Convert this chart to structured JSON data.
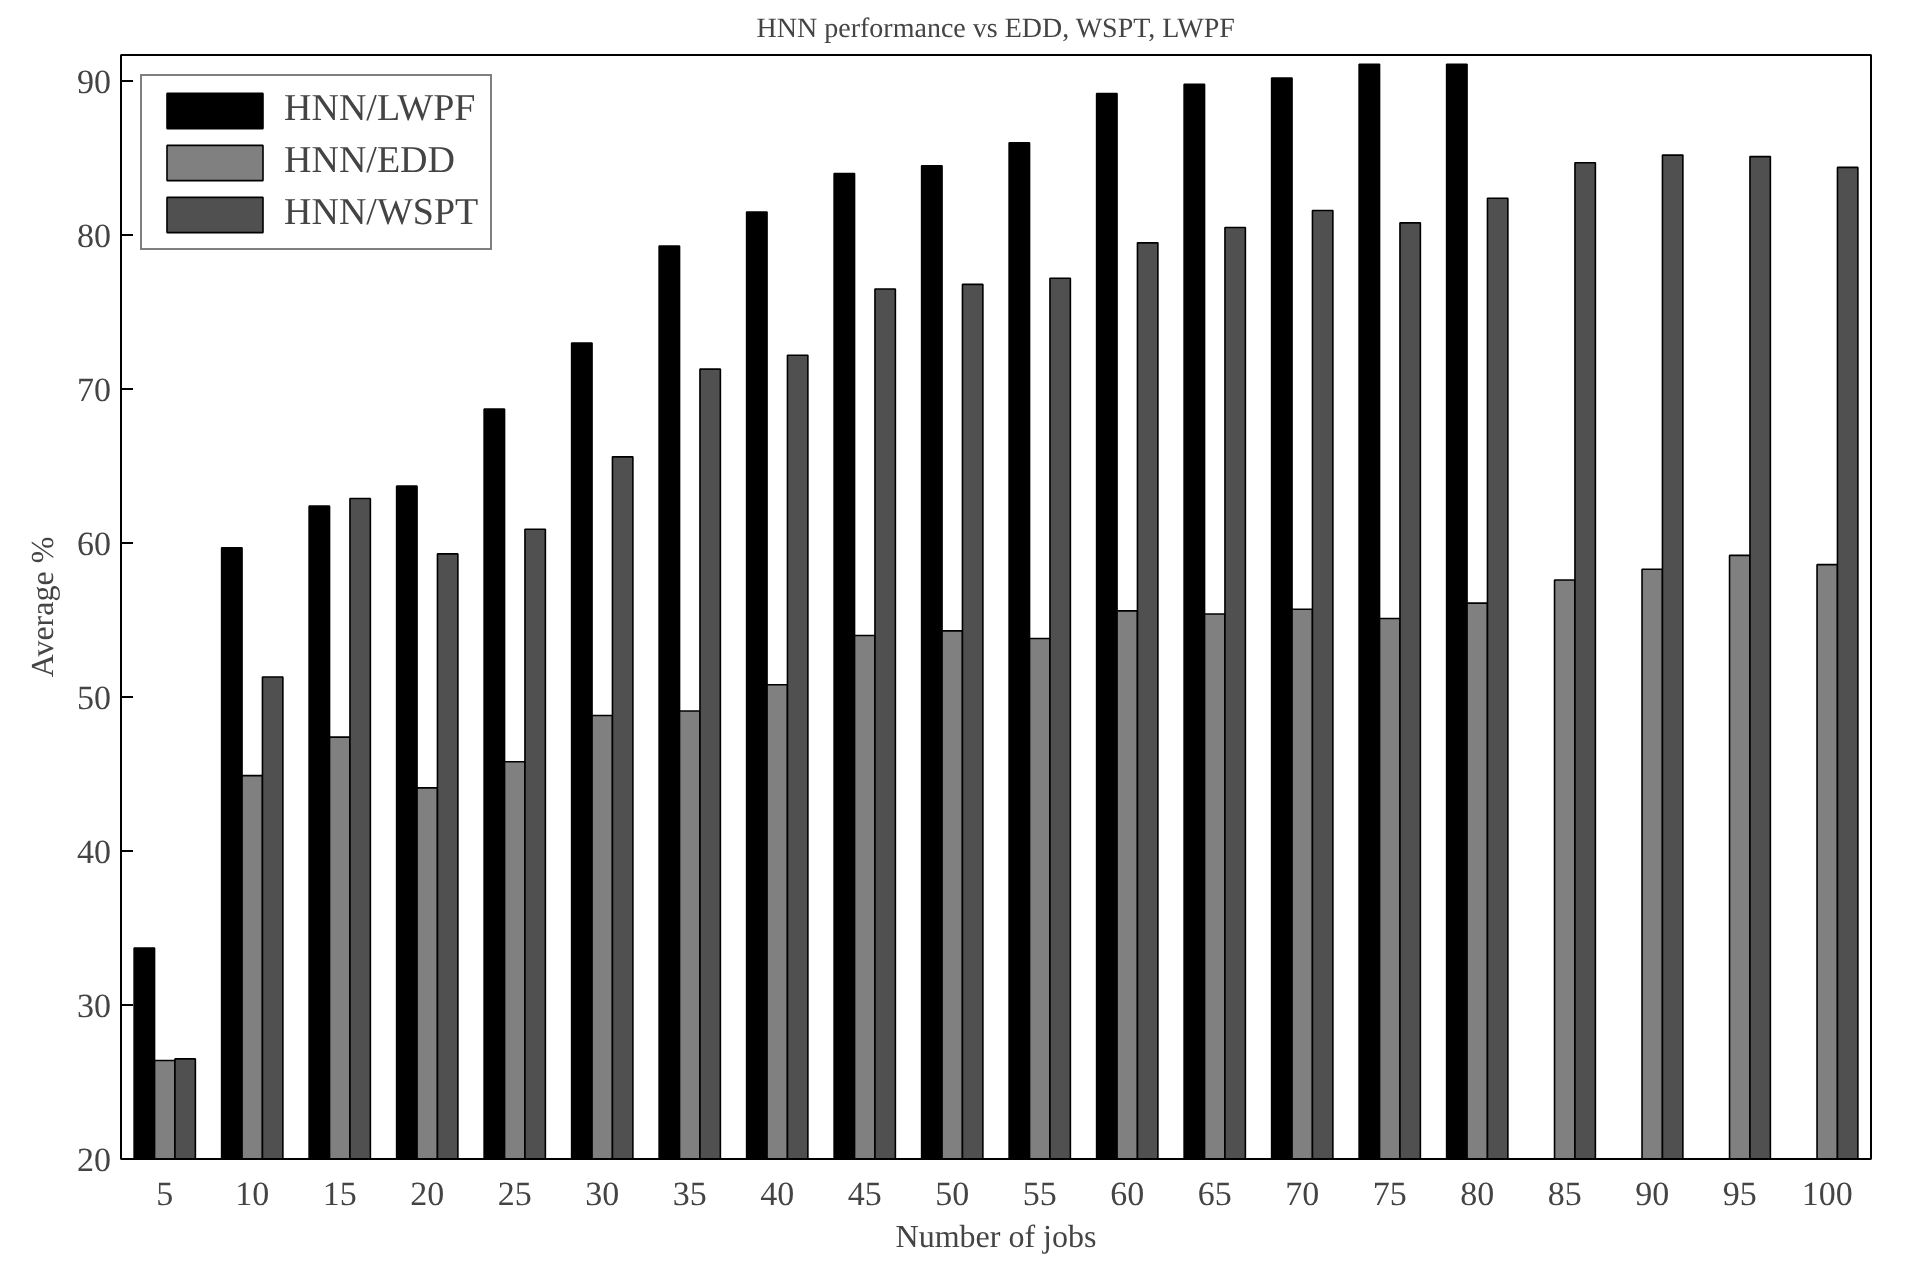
{
  "chart_data": {
    "type": "bar",
    "title": "HNN performance vs EDD, WSPT, LWPF",
    "xlabel": "Number of jobs",
    "ylabel": "Average %",
    "categories": [
      "5",
      "10",
      "15",
      "20",
      "25",
      "30",
      "35",
      "40",
      "45",
      "50",
      "55",
      "60",
      "65",
      "70",
      "75",
      "80",
      "85",
      "90",
      "95",
      "100"
    ],
    "series": [
      {
        "name": "HNN/LWPF",
        "color": "#000000",
        "values": [
          33.7,
          59.7,
          62.4,
          63.7,
          68.7,
          73.0,
          79.3,
          81.5,
          84.0,
          84.5,
          86.0,
          89.2,
          89.8,
          90.2,
          91.1,
          91.1,
          null,
          null,
          null,
          null
        ]
      },
      {
        "name": "HNN/EDD",
        "color": "#808080",
        "values": [
          26.4,
          44.9,
          47.4,
          44.1,
          45.8,
          48.8,
          49.1,
          50.8,
          54.0,
          54.3,
          53.8,
          55.6,
          55.4,
          55.7,
          55.1,
          56.1,
          57.6,
          58.3,
          59.2,
          58.6
        ]
      },
      {
        "name": "HNN/WSPT",
        "color": "#505050",
        "values": [
          26.5,
          51.3,
          62.9,
          59.3,
          60.9,
          65.6,
          71.3,
          72.2,
          76.5,
          76.8,
          77.2,
          79.5,
          80.5,
          81.6,
          80.8,
          82.4,
          84.7,
          85.2,
          85.1,
          84.4
        ]
      }
    ],
    "ylim": [
      20,
      91.7
    ],
    "yticks": [
      20,
      30,
      40,
      50,
      60,
      70,
      80,
      90
    ],
    "grid": false,
    "legend": "top left"
  }
}
